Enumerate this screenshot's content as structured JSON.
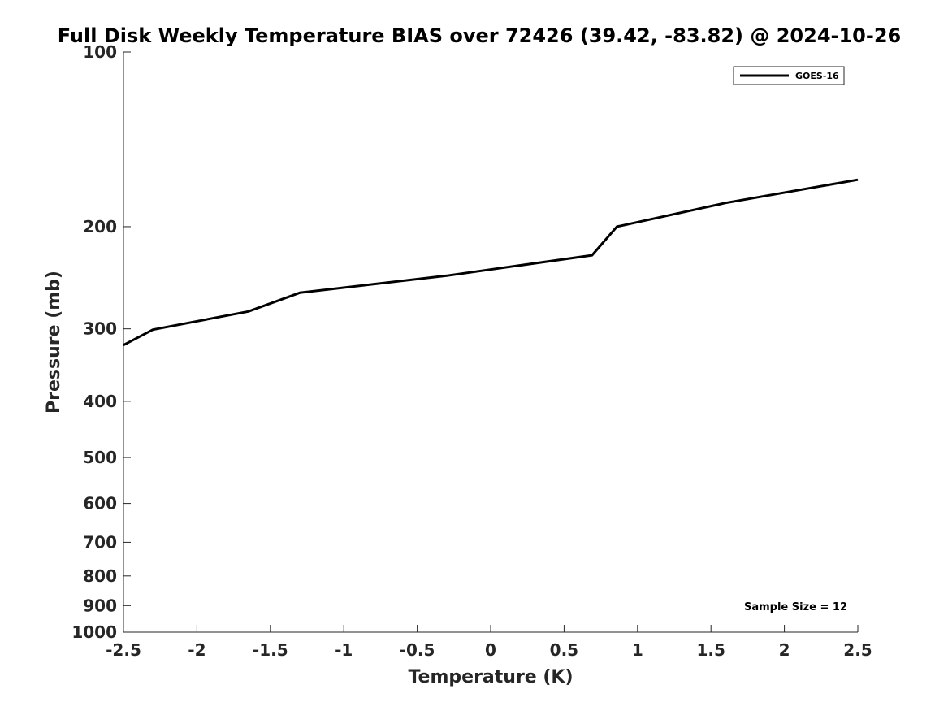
{
  "chart_data": {
    "type": "line",
    "title": "Full Disk Weekly Temperature BIAS over 72426 (39.42, -83.82) @ 2024-10-26",
    "xlabel": "Temperature (K)",
    "ylabel": "Pressure (mb)",
    "xlim": [
      -2.5,
      2.5
    ],
    "ylim": [
      1000,
      100
    ],
    "yscale": "log",
    "xticks": [
      -2.5,
      -2,
      -1.5,
      -1,
      -0.5,
      0,
      0.5,
      1,
      1.5,
      2,
      2.5
    ],
    "xtick_labels": [
      "-2.5",
      "-2",
      "-1.5",
      "-1",
      "-0.5",
      "0",
      "0.5",
      "1",
      "1.5",
      "2",
      "2.5"
    ],
    "yticks": [
      100,
      200,
      300,
      400,
      500,
      600,
      700,
      800,
      900,
      1000
    ],
    "ytick_labels": [
      "100",
      "200",
      "300",
      "400",
      "500",
      "600",
      "700",
      "800",
      "900",
      "1000"
    ],
    "grid": false,
    "legend_position": "top-right",
    "series": [
      {
        "name": "GOES-16",
        "color": "#000000",
        "x": [
          -2.5,
          -2.3,
          -1.65,
          -1.3,
          -0.3,
          0.69,
          0.86,
          1.6,
          2.5
        ],
        "y": [
          320,
          301,
          280,
          260,
          243,
          224,
          200,
          182,
          166
        ]
      }
    ],
    "annotation": "Sample Size = 12"
  }
}
